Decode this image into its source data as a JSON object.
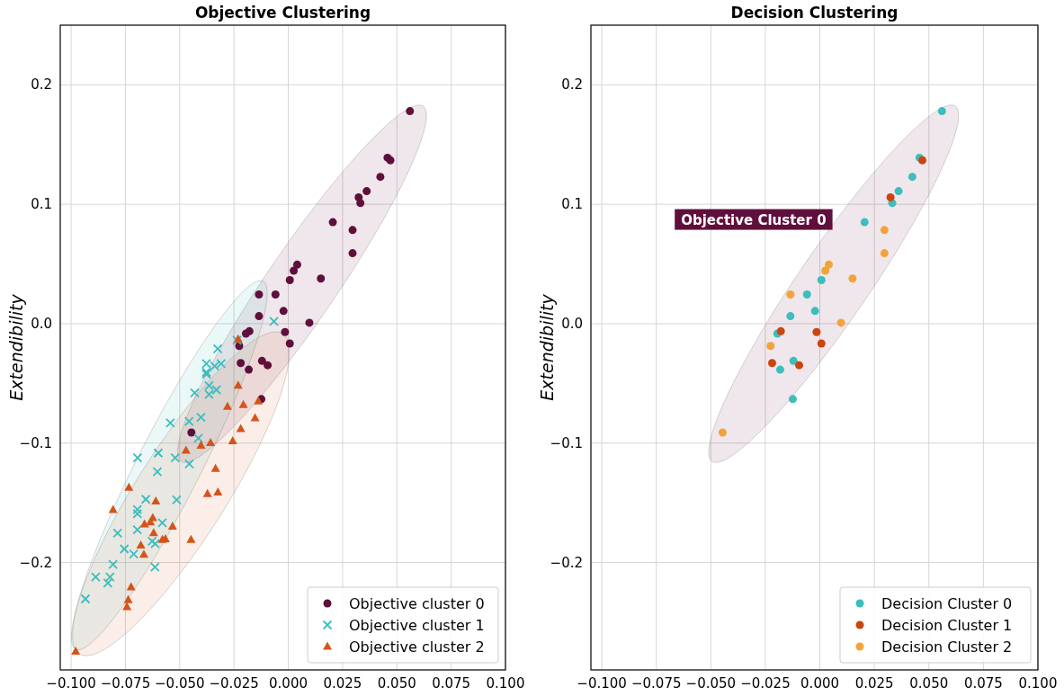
{
  "chart_data": [
    {
      "type": "scatter",
      "title": "Objective Clustering",
      "ylabel": "Extendibility",
      "xlim": [
        -0.105,
        0.1
      ],
      "ylim": [
        -0.29,
        0.25
      ],
      "grid": true,
      "legend": "bottom right",
      "xticks": [
        {
          "value": -0.1,
          "label": "−0.100"
        },
        {
          "value": -0.075,
          "label": "−0.075"
        },
        {
          "value": -0.05,
          "label": "−0.050"
        },
        {
          "value": -0.025,
          "label": "−0.025"
        },
        {
          "value": 0,
          "label": "0.000"
        },
        {
          "value": 0.025,
          "label": "0.025"
        },
        {
          "value": 0.05,
          "label": "0.050"
        },
        {
          "value": 0.075,
          "label": "0.075"
        },
        {
          "value": 0.1,
          "label": "0.100"
        }
      ],
      "yticks": [
        {
          "value": -0.2,
          "label": "−0.2"
        },
        {
          "value": -0.1,
          "label": "−0.1"
        },
        {
          "value": 0,
          "label": "0.0"
        },
        {
          "value": 0.1,
          "label": "0.1"
        },
        {
          "value": 0.2,
          "label": "0.2"
        }
      ],
      "series": [
        {
          "name": "Objective cluster 0",
          "color": "#600f3c",
          "marker": "circle",
          "x": [
            0.056,
            0.0457,
            0.0424,
            0.0361,
            0.0332,
            0.0205,
            0.0007,
            -0.0059,
            -0.0135,
            -0.0022,
            -0.0195,
            -0.0121,
            -0.0182,
            -0.0124,
            0.047,
            0.0324,
            -0.0179,
            -0.0015,
            0.0007,
            -0.0219,
            -0.0095,
            0.0296,
            0.0296,
            0.0041,
            0.0025,
            0.015,
            -0.0135,
            0.0097,
            -0.0226,
            -0.0446
          ],
          "values": [
            0.178,
            0.139,
            0.123,
            0.111,
            0.101,
            0.085,
            0.0365,
            0.0244,
            0.0063,
            0.0106,
            -0.0083,
            -0.0312,
            -0.0385,
            -0.0632,
            0.1368,
            0.1058,
            -0.0063,
            -0.007,
            -0.0166,
            -0.033,
            -0.0348,
            0.0784,
            0.059,
            0.0494,
            0.0444,
            0.0378,
            0.0244,
            0.0008,
            -0.0187,
            -0.0912
          ]
        },
        {
          "name": "Objective cluster 1",
          "color": "#3dbdbd",
          "marker": "cross",
          "x": [
            -0.0066,
            -0.0236,
            -0.0325,
            -0.0377,
            -0.0339,
            -0.0309,
            -0.0377,
            -0.0377,
            -0.0365,
            -0.0331,
            -0.0365,
            -0.0431,
            -0.0402,
            -0.0457,
            -0.0543,
            -0.0414,
            -0.0694,
            -0.0599,
            -0.0521,
            -0.0456,
            -0.0603,
            -0.0656,
            -0.0514,
            -0.0695,
            -0.0695,
            -0.058,
            -0.0695,
            -0.0786,
            -0.0627,
            -0.0613,
            -0.0755,
            -0.0712,
            -0.0807,
            -0.0614,
            -0.0887,
            -0.0821,
            -0.0831,
            -0.0934
          ],
          "values": [
            0.002,
            -0.0138,
            -0.021,
            -0.0335,
            -0.0355,
            -0.0335,
            -0.0406,
            -0.0423,
            -0.0519,
            -0.0554,
            -0.0592,
            -0.058,
            -0.0784,
            -0.0819,
            -0.0831,
            -0.096,
            -0.1124,
            -0.1083,
            -0.1124,
            -0.1174,
            -0.124,
            -0.1471,
            -0.1476,
            -0.1557,
            -0.1592,
            -0.1668,
            -0.1726,
            -0.1754,
            -0.1822,
            -0.1842,
            -0.1887,
            -0.193,
            -0.2016,
            -0.2038,
            -0.2121,
            -0.2121,
            -0.2172,
            -0.2305
          ]
        },
        {
          "name": "Objective cluster 2",
          "color": "#d4541a",
          "marker": "triangle",
          "x": [
            -0.0231,
            -0.0231,
            -0.028,
            -0.0207,
            -0.0138,
            -0.0153,
            -0.0219,
            -0.0256,
            -0.0358,
            -0.0402,
            -0.0471,
            -0.0335,
            -0.0734,
            -0.0372,
            -0.0324,
            -0.061,
            -0.0807,
            -0.0624,
            -0.0635,
            -0.0662,
            -0.0533,
            -0.062,
            -0.058,
            -0.0566,
            -0.0448,
            -0.0679,
            -0.0665,
            -0.0724,
            -0.0737,
            -0.0743,
            -0.0979
          ],
          "values": [
            -0.0131,
            -0.0519,
            -0.0695,
            -0.068,
            -0.065,
            -0.0791,
            -0.0882,
            -0.0983,
            -0.0998,
            -0.102,
            -0.1063,
            -0.1215,
            -0.1373,
            -0.1426,
            -0.1413,
            -0.1487,
            -0.156,
            -0.1628,
            -0.1663,
            -0.168,
            -0.1698,
            -0.1754,
            -0.1809,
            -0.1804,
            -0.1809,
            -0.1857,
            -0.1935,
            -0.2207,
            -0.2315,
            -0.2373,
            -0.2746
          ]
        }
      ]
    },
    {
      "type": "scatter",
      "title": "Decision Clustering",
      "ylabel": "Extendibility",
      "xlim": [
        -0.105,
        0.1
      ],
      "ylim": [
        -0.29,
        0.25
      ],
      "grid": true,
      "legend": "bottom right",
      "marker": "circle",
      "xticks": [
        {
          "value": -0.1,
          "label": "−0.100"
        },
        {
          "value": -0.075,
          "label": "−0.075"
        },
        {
          "value": -0.05,
          "label": "−0.050"
        },
        {
          "value": -0.025,
          "label": "−0.025"
        },
        {
          "value": 0,
          "label": "0.000"
        },
        {
          "value": 0.025,
          "label": "0.025"
        },
        {
          "value": 0.05,
          "label": "0.050"
        },
        {
          "value": 0.075,
          "label": "0.075"
        },
        {
          "value": 0.1,
          "label": "0.100"
        }
      ],
      "yticks": [
        {
          "value": -0.2,
          "label": "−0.2"
        },
        {
          "value": -0.1,
          "label": "−0.1"
        },
        {
          "value": 0,
          "label": "0.0"
        },
        {
          "value": 0.1,
          "label": "0.1"
        },
        {
          "value": 0.2,
          "label": "0.2"
        }
      ],
      "annotations": [
        "Objective Cluster 0"
      ],
      "series": [
        {
          "name": "Decision Cluster 0",
          "color": "#3dbdbd",
          "x": [
            0.056,
            0.0457,
            0.0424,
            0.0361,
            0.0332,
            0.0205,
            0.0007,
            -0.0059,
            -0.0135,
            -0.0022,
            -0.0195,
            -0.0121,
            -0.0182,
            -0.0124
          ],
          "values": [
            0.178,
            0.139,
            0.123,
            0.111,
            0.101,
            0.085,
            0.0365,
            0.0244,
            0.0063,
            0.0106,
            -0.0083,
            -0.0312,
            -0.0385,
            -0.0632
          ]
        },
        {
          "name": "Decision Cluster 1",
          "color": "#cc4410",
          "x": [
            0.047,
            0.0324,
            -0.0179,
            -0.0015,
            0.0007,
            -0.0219,
            -0.0095
          ],
          "values": [
            0.1368,
            0.1058,
            -0.0063,
            -0.007,
            -0.0166,
            -0.033,
            -0.0348
          ]
        },
        {
          "name": "Decision Cluster 2",
          "color": "#f2a43a",
          "x": [
            0.0296,
            0.0296,
            0.0041,
            0.0025,
            0.015,
            -0.0135,
            0.0097,
            -0.0226,
            -0.0446
          ],
          "values": [
            0.0784,
            0.059,
            0.0494,
            0.0444,
            0.0378,
            0.0244,
            0.0008,
            -0.0187,
            -0.0912
          ]
        }
      ]
    }
  ]
}
